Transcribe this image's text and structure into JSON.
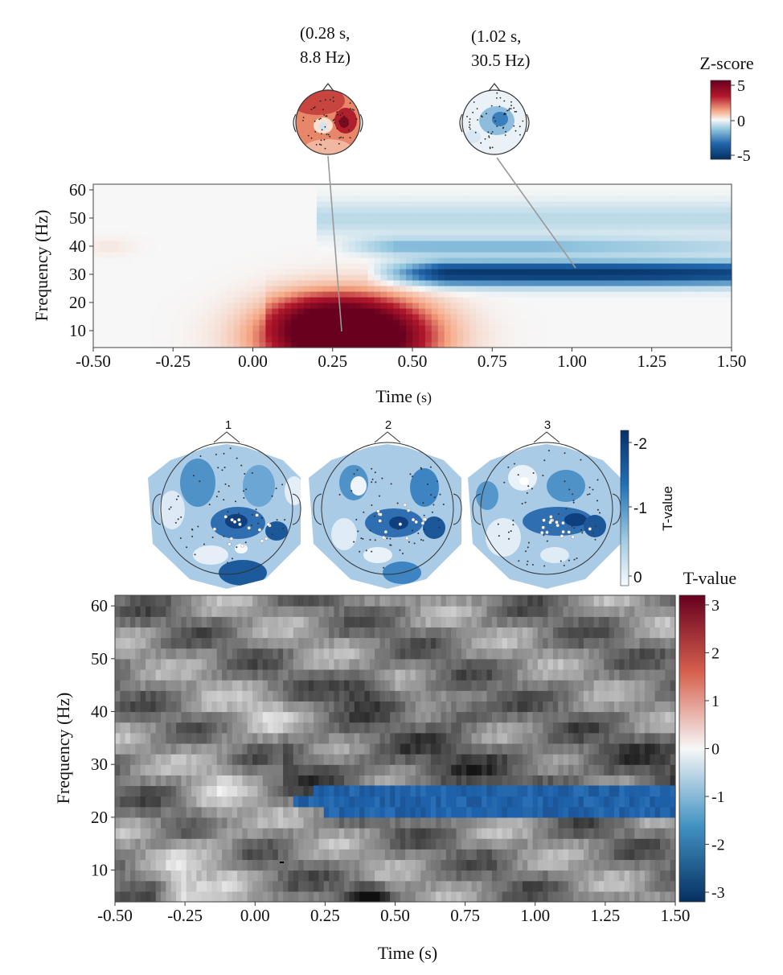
{
  "colors": {
    "div_red": "#67001f",
    "div_white": "#f7f7f7",
    "div_blue": "#053061",
    "seq_blue": "#08306b",
    "gray_dark": "#111111",
    "gray_light": "#f2f2f2",
    "sig_blue": "#2166ac"
  },
  "chart_data": [
    {
      "type": "heatmap",
      "panel": "top-time-frequency",
      "xlabel_main": "Time",
      "xlabel_unit": "(s)",
      "ylabel": "Frequency (Hz)",
      "xlim": [
        -0.5,
        1.5
      ],
      "ylim": [
        4,
        62
      ],
      "xticks": [
        "-0.50",
        "-0.25",
        "0.00",
        "0.25",
        "0.50",
        "0.75",
        "1.00",
        "1.25",
        "1.50"
      ],
      "yticks": [
        "10",
        "20",
        "30",
        "40",
        "50",
        "60"
      ],
      "colorbar": {
        "title": "Z-score",
        "ticks": [
          "5",
          "0",
          "-5"
        ],
        "range": [
          -5,
          5
        ]
      },
      "features": [
        {
          "kind": "synchronization",
          "time_center": 0.28,
          "freq_center": 8.8,
          "peak_z": 5
        },
        {
          "kind": "desynchronization",
          "time_center": 1.02,
          "freq_center": 30.5,
          "peak_z": -4.5
        },
        {
          "kind": "desynchronization",
          "time_center": 0.55,
          "freq_center": 39,
          "peak_z": -1.5
        }
      ],
      "topomaps": [
        {
          "label_line1": "(0.28 s,",
          "label_line2": "8.8 Hz)",
          "time": 0.28,
          "freq": 8.8,
          "polarity": "positive"
        },
        {
          "label_line1": "(1.02 s,",
          "label_line2": "30.5 Hz)",
          "time": 1.02,
          "freq": 30.5,
          "polarity": "negative"
        }
      ]
    },
    {
      "type": "heatmap",
      "panel": "cluster-topographies",
      "maps": [
        "1",
        "2",
        "3"
      ],
      "colorbar": {
        "title": "T-value",
        "ticks": [
          "-2",
          "-1",
          "0"
        ],
        "range": [
          -2.2,
          0
        ]
      }
    },
    {
      "type": "heatmap",
      "panel": "bottom-t-map",
      "xlabel": "Time (s)",
      "ylabel": "Frequency (Hz)",
      "xlim": [
        -0.5,
        1.5
      ],
      "ylim": [
        4,
        62
      ],
      "xticks": [
        "-0.50",
        "-0.25",
        "0.00",
        "0.25",
        "0.50",
        "0.75",
        "1.00",
        "1.25",
        "1.50"
      ],
      "yticks": [
        "10",
        "20",
        "30",
        "40",
        "50",
        "60"
      ],
      "colorbar": {
        "title": "T-value",
        "ticks": [
          "3",
          "2",
          "1",
          "0",
          "-1",
          "-2",
          "-3"
        ],
        "range": [
          -3.2,
          3.2
        ]
      },
      "significant_cluster": {
        "freq_range": [
          20,
          26
        ],
        "time_start": 0.12,
        "time_end": 1.5,
        "mean_t": -1.6
      }
    }
  ]
}
